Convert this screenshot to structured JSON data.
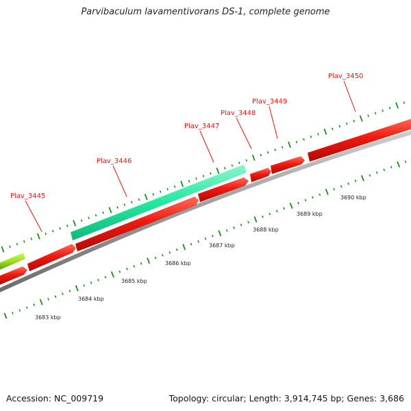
{
  "title": "Parvibaculum lavamentivorans DS-1, complete genome",
  "footer": {
    "accession": "Accession: NC_009719",
    "summary": "Topology: circular; Length: 3,914,745 bp; Genes: 3,686"
  },
  "colors": {
    "forward_gene": "#e8120c",
    "rna_gene": "#22e8a0",
    "other_gene": "#9ee01c",
    "backbone": "#8c8c8c",
    "ticks": "#1a8a1a",
    "label": "#e8120c"
  },
  "genes": [
    {
      "name": "Plav_3445"
    },
    {
      "name": "Plav_3446"
    },
    {
      "name": "Plav_3447"
    },
    {
      "name": "Plav_3448"
    },
    {
      "name": "Plav_3449"
    },
    {
      "name": "Plav_3450"
    }
  ],
  "kbp_labels": [
    "3683 kbp",
    "3684 kbp",
    "3685 kbp",
    "3686 kbp",
    "3687 kbp",
    "3688 kbp",
    "3689 kbp",
    "3690 kbp"
  ]
}
